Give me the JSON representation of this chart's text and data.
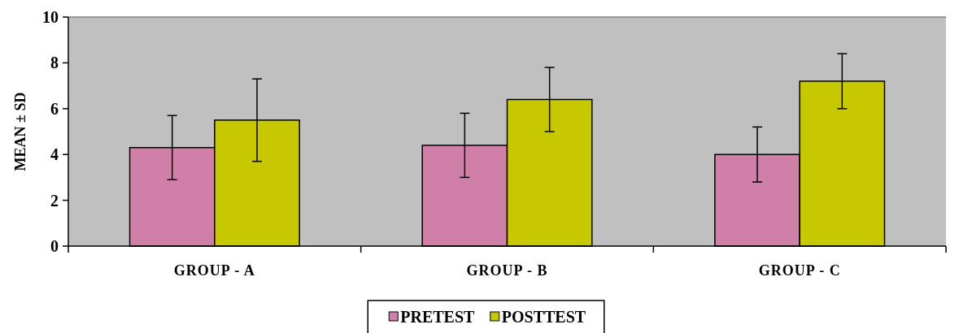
{
  "chart_data": {
    "type": "bar",
    "ylabel": "MEAN ± SD",
    "categories": [
      "GROUP - A",
      "GROUP - B",
      "GROUP - C"
    ],
    "series": [
      {
        "name": "PRETEST",
        "color": "#d080a8",
        "values": [
          4.3,
          4.4,
          4.0
        ],
        "errors": [
          1.4,
          1.4,
          1.2
        ]
      },
      {
        "name": "POSTTEST",
        "color": "#c8c800",
        "values": [
          5.5,
          6.4,
          7.2
        ],
        "errors": [
          1.8,
          1.4,
          1.2
        ]
      }
    ],
    "ylim": [
      0,
      10
    ],
    "yticks": [
      0,
      2,
      4,
      6,
      8,
      10
    ],
    "grid": false,
    "legend": "bottom"
  }
}
